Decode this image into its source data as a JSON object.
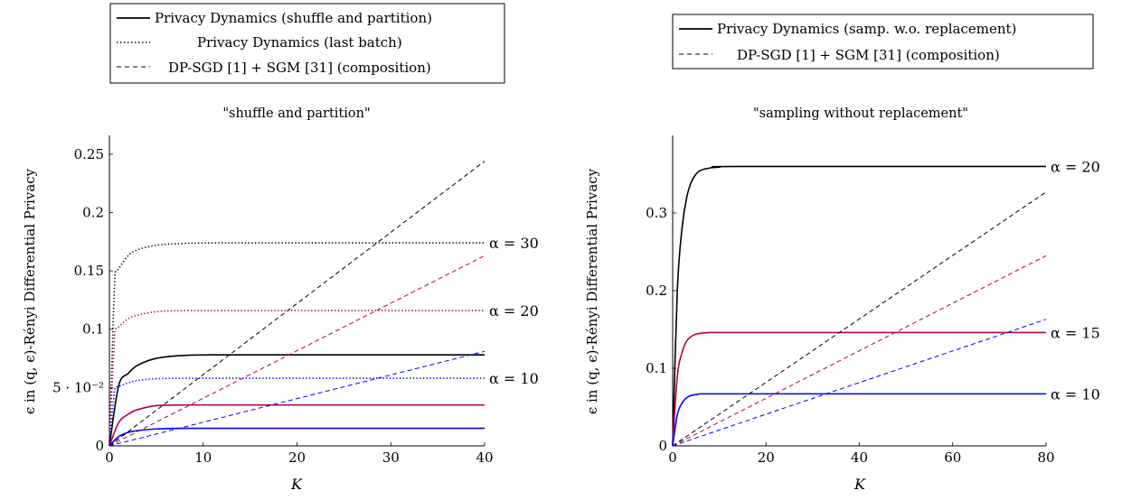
{
  "colors": {
    "black": "#000000",
    "purple": "#b3004d",
    "blue": "#0000ff"
  },
  "chart_data": [
    {
      "type": "line",
      "title": "\"shuffle and partition\"",
      "xlabel": "K",
      "ylabel": "ϵ in (q, ϵ)-Rényi Differential Privacy",
      "xlim": [
        0,
        40
      ],
      "ylim": [
        0,
        0.27
      ],
      "xticks": [
        "0",
        "10",
        "20",
        "30",
        "40"
      ],
      "yticks": [
        "0",
        "5 · 10⁻²",
        "0.1",
        "0.15",
        "0.2",
        "0.25"
      ],
      "ytick_values": [
        0,
        0.05,
        0.1,
        0.15,
        0.2,
        0.25
      ],
      "legend": {
        "placement": "top-left",
        "entries": [
          {
            "label": "Privacy Dynamics (shuffle and partition)",
            "style": "solid"
          },
          {
            "label": "Privacy Dynamics (last batch)",
            "style": "dotted"
          },
          {
            "label": "DP-SGD [1] + SGM [31] (composition)",
            "style": "dashed"
          }
        ]
      },
      "curve_labels": [
        {
          "text": "α = 30",
          "y": 0.174
        },
        {
          "text": "α = 20",
          "y": 0.116
        },
        {
          "text": "α = 10",
          "y": 0.058
        }
      ],
      "series": [
        {
          "style": "solid",
          "color": "black",
          "kind": "sat",
          "x": [
            0,
            1,
            2,
            3,
            5,
            8,
            12,
            20,
            40
          ],
          "y": [
            0,
            0.052,
            0.062,
            0.069,
            0.075,
            0.0775,
            0.078,
            0.078,
            0.078
          ]
        },
        {
          "style": "solid",
          "color": "purple",
          "kind": "sat",
          "x": [
            0,
            1,
            2,
            3,
            5,
            8,
            12,
            20,
            40
          ],
          "y": [
            0,
            0.02,
            0.027,
            0.031,
            0.0345,
            0.035,
            0.035,
            0.035,
            0.035
          ]
        },
        {
          "style": "solid",
          "color": "blue",
          "kind": "sat",
          "x": [
            0,
            1,
            2,
            3,
            5,
            8,
            12,
            20,
            40
          ],
          "y": [
            0,
            0.008,
            0.0115,
            0.013,
            0.0145,
            0.015,
            0.015,
            0.015,
            0.015
          ]
        },
        {
          "style": "dotted",
          "color": "black",
          "kind": "sat",
          "x": [
            0,
            0.6,
            1,
            2,
            3,
            5,
            8,
            12,
            20,
            40
          ],
          "y": [
            0,
            0.148,
            0.152,
            0.163,
            0.168,
            0.172,
            0.1735,
            0.174,
            0.174,
            0.174
          ]
        },
        {
          "style": "dotted",
          "color": "purple",
          "kind": "sat",
          "x": [
            0,
            0.6,
            1,
            2,
            3,
            5,
            8,
            12,
            20,
            40
          ],
          "y": [
            0,
            0.099,
            0.102,
            0.109,
            0.112,
            0.115,
            0.116,
            0.116,
            0.116,
            0.116
          ]
        },
        {
          "style": "dotted",
          "color": "blue",
          "kind": "sat",
          "x": [
            0,
            0.6,
            1,
            2,
            3,
            5,
            8,
            12,
            20,
            40
          ],
          "y": [
            0,
            0.05,
            0.051,
            0.054,
            0.056,
            0.0575,
            0.058,
            0.058,
            0.058,
            0.058
          ]
        },
        {
          "style": "dashed",
          "color": "black",
          "kind": "linear",
          "x": [
            0,
            40
          ],
          "y": [
            0,
            0.244
          ]
        },
        {
          "style": "dashed",
          "color": "purple",
          "kind": "linear",
          "x": [
            0,
            40
          ],
          "y": [
            0,
            0.163
          ]
        },
        {
          "style": "dashed",
          "color": "blue",
          "kind": "linear",
          "x": [
            0,
            40
          ],
          "y": [
            0,
            0.081
          ]
        }
      ]
    },
    {
      "type": "line",
      "title": "\"sampling without replacement\"",
      "xlabel": "K",
      "ylabel": "ϵ in (q, ϵ)-Rényi Differential Privacy",
      "xlim": [
        0,
        80
      ],
      "ylim": [
        0,
        0.4
      ],
      "xticks": [
        "0",
        "20",
        "40",
        "60",
        "80"
      ],
      "yticks": [
        "0",
        "0.1",
        "0.2",
        "0.3"
      ],
      "ytick_values": [
        0,
        0.1,
        0.2,
        0.3
      ],
      "legend": {
        "placement": "top-right",
        "entries": [
          {
            "label": "Privacy Dynamics (samp. w.o. replacement)",
            "style": "solid"
          },
          {
            "label": "DP-SGD [1] + SGM [31] (composition)",
            "style": "dashed"
          }
        ]
      },
      "curve_labels": [
        {
          "text": "α = 20",
          "y": 0.36
        },
        {
          "text": "α = 15",
          "y": 0.146
        },
        {
          "text": "α = 10",
          "y": 0.067
        }
      ],
      "series": [
        {
          "style": "solid",
          "color": "black",
          "kind": "sat",
          "x": [
            0,
            1,
            2,
            3,
            4,
            5,
            6,
            8,
            10,
            15,
            80
          ],
          "y": [
            0,
            0.2,
            0.28,
            0.32,
            0.34,
            0.35,
            0.355,
            0.358,
            0.359,
            0.36,
            0.36
          ]
        },
        {
          "style": "solid",
          "color": "purple",
          "kind": "sat",
          "x": [
            0,
            1,
            2,
            3,
            4,
            5,
            6,
            8,
            10,
            15,
            80
          ],
          "y": [
            0,
            0.09,
            0.12,
            0.135,
            0.141,
            0.144,
            0.145,
            0.146,
            0.146,
            0.146,
            0.146
          ]
        },
        {
          "style": "solid",
          "color": "blue",
          "kind": "sat",
          "x": [
            0,
            1,
            2,
            3,
            4,
            5,
            6,
            8,
            10,
            15,
            80
          ],
          "y": [
            0,
            0.04,
            0.055,
            0.062,
            0.065,
            0.066,
            0.067,
            0.067,
            0.067,
            0.067,
            0.067
          ]
        },
        {
          "style": "dashed",
          "color": "black",
          "kind": "linear",
          "x": [
            0,
            80
          ],
          "y": [
            0,
            0.327
          ]
        },
        {
          "style": "dashed",
          "color": "purple",
          "kind": "linear",
          "x": [
            0,
            80
          ],
          "y": [
            0,
            0.245
          ]
        },
        {
          "style": "dashed",
          "color": "blue",
          "kind": "linear",
          "x": [
            0,
            80
          ],
          "y": [
            0,
            0.163
          ]
        }
      ]
    }
  ]
}
